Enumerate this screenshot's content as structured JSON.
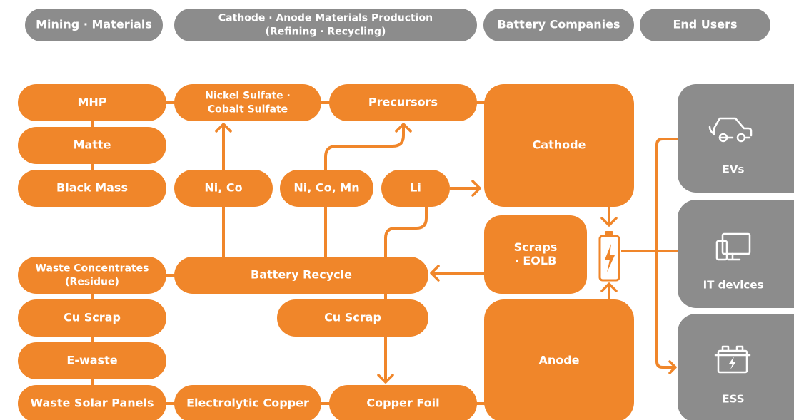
{
  "header": {
    "columns": [
      {
        "lines": [
          "Mining · Materials"
        ]
      },
      {
        "lines": [
          "Cathode · Anode Materials Production",
          "(Refining · Recycling)"
        ]
      },
      {
        "lines": [
          "Battery Companies"
        ]
      },
      {
        "lines": [
          "End Users"
        ]
      }
    ]
  },
  "nodes": [
    {
      "lines": [
        "MHP"
      ]
    },
    {
      "lines": [
        "Matte"
      ]
    },
    {
      "lines": [
        "Black Mass"
      ]
    },
    {
      "lines": [
        "Waste Concentrates",
        "(Residue)"
      ]
    },
    {
      "lines": [
        "Cu Scrap"
      ]
    },
    {
      "lines": [
        "E-waste"
      ]
    },
    {
      "lines": [
        "Waste Solar Panels"
      ]
    },
    {
      "lines": [
        "Nickel Sulfate ·",
        "Cobalt Sulfate"
      ]
    },
    {
      "lines": [
        "Precursors"
      ]
    },
    {
      "lines": [
        "Ni, Co"
      ]
    },
    {
      "lines": [
        "Ni, Co, Mn"
      ]
    },
    {
      "lines": [
        "Li"
      ]
    },
    {
      "lines": [
        "Battery Recycle"
      ]
    },
    {
      "lines": [
        "Cu Scrap"
      ]
    },
    {
      "lines": [
        "Electrolytic Copper"
      ]
    },
    {
      "lines": [
        "Copper Foil"
      ]
    },
    {
      "lines": [
        "Cathode"
      ]
    },
    {
      "lines": [
        "Scraps",
        "· EOLB"
      ]
    },
    {
      "lines": [
        "Anode"
      ]
    }
  ],
  "end_users": [
    {
      "label": "EVs"
    },
    {
      "label": "IT devices"
    },
    {
      "label": "ESS"
    }
  ]
}
